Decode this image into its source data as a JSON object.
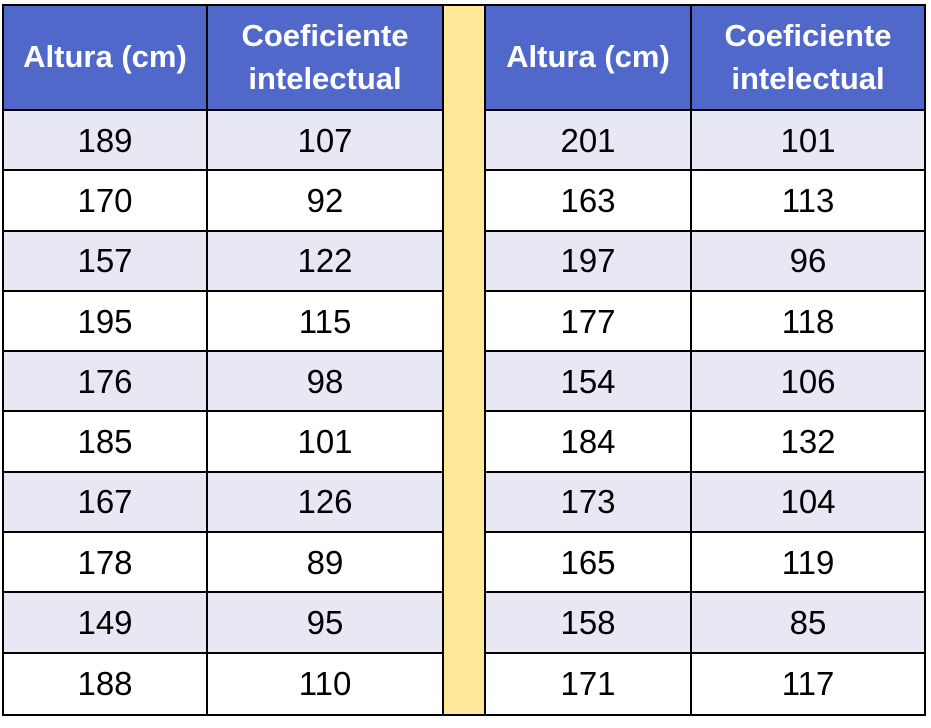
{
  "table": {
    "left": {
      "headers": [
        "Altura (cm)",
        "Coeficiente intelectual"
      ],
      "rows": [
        [
          "189",
          "107"
        ],
        [
          "170",
          "92"
        ],
        [
          "157",
          "122"
        ],
        [
          "195",
          "115"
        ],
        [
          "176",
          "98"
        ],
        [
          "185",
          "101"
        ],
        [
          "167",
          "126"
        ],
        [
          "178",
          "89"
        ],
        [
          "149",
          "95"
        ],
        [
          "188",
          "110"
        ]
      ]
    },
    "right": {
      "headers": [
        "Altura (cm)",
        "Coeficiente intelectual"
      ],
      "rows": [
        [
          "201",
          "101"
        ],
        [
          "163",
          "113"
        ],
        [
          "197",
          "96"
        ],
        [
          "177",
          "118"
        ],
        [
          "154",
          "106"
        ],
        [
          "184",
          "132"
        ],
        [
          "173",
          "104"
        ],
        [
          "165",
          "119"
        ],
        [
          "158",
          "85"
        ],
        [
          "171",
          "117"
        ]
      ]
    }
  },
  "colors": {
    "header_bg": "#4f68c9",
    "header_text": "#ffffff",
    "stripe_row": "#e8e8f4",
    "plain_row": "#ffffff",
    "divider": "#ffe79a"
  }
}
